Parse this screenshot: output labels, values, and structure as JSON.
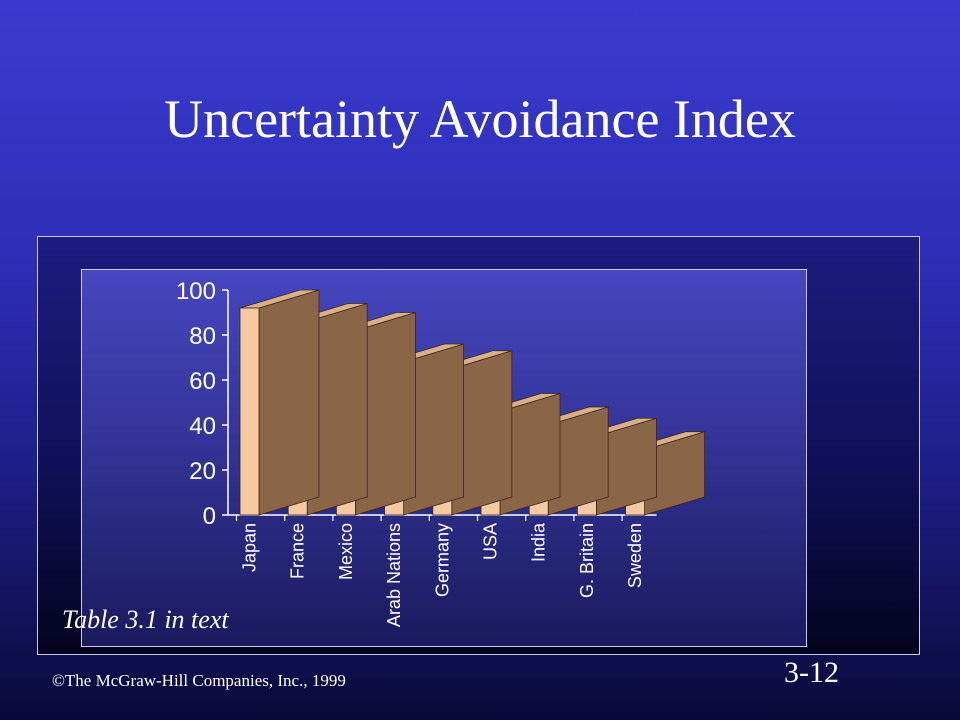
{
  "slide": {
    "title": "Uncertainty Avoidance Index",
    "caption": "Table 3.1 in text",
    "copyright": "©The McGraw-Hill Companies, Inc., 1999",
    "slide_number": "3-12"
  },
  "chart_data": {
    "type": "bar",
    "categories": [
      "Japan",
      "France",
      "Mexico",
      "Arab Nations",
      "Germany",
      "USA",
      "India",
      "G. Britain",
      "Sweden"
    ],
    "values": [
      92,
      86,
      82,
      68,
      65,
      46,
      40,
      35,
      29
    ],
    "ylim": [
      0,
      100
    ],
    "yticks": [
      0,
      20,
      40,
      60,
      80,
      100
    ],
    "title": "",
    "xlabel": "",
    "ylabel": "",
    "grid": false,
    "legend": "none",
    "style": "3d-columns",
    "colors": {
      "bar_front": "#f7c9a0",
      "bar_side": "#8a6548",
      "bar_top": "#d9b08a",
      "axis": "#ffffff"
    }
  }
}
